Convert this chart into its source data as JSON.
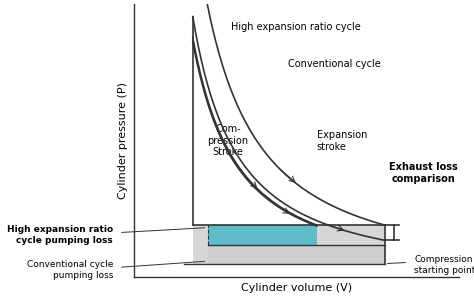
{
  "title": "",
  "xlabel": "Cylinder volume (V)",
  "ylabel": "Cylinder pressure (P)",
  "bg_color": "#ffffff",
  "text_color": "#000000",
  "line_color": "#333333",
  "teal_color": "#4ab8c8",
  "gray_color": "#cccccc",
  "annotations": {
    "high_exp": "High expansion ratio cycle",
    "conv": "Conventional cycle",
    "exp_stroke": "Expansion\nstroke",
    "exhaust": "Exhaust loss\ncomparison",
    "comp_stroke": "Com-\npression\nStroke",
    "high_pump": "High expansion ratio\ncycle pumping loss",
    "conv_pump": "Conventional cycle\npumping loss",
    "comp_start": "Compression\nstarting point"
  }
}
